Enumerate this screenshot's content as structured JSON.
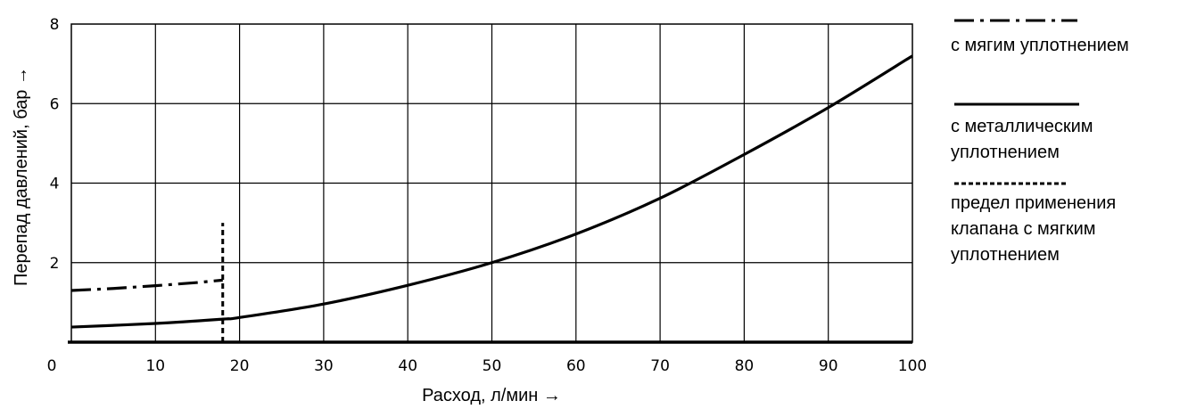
{
  "chart_data": {
    "type": "line",
    "xlabel": "Расход, л/мин →",
    "ylabel": "Перепад давлений, бар →",
    "xlim": [
      0,
      100
    ],
    "ylim": [
      0,
      8
    ],
    "x_ticks": [
      0,
      10,
      20,
      30,
      40,
      50,
      60,
      70,
      80,
      90,
      100
    ],
    "y_ticks": [
      2,
      4,
      6,
      8
    ],
    "x_tick_labels": [
      "0",
      "10",
      "20",
      "30",
      "40",
      "50",
      "60",
      "70",
      "80",
      "90",
      "100"
    ],
    "y_tick_labels": [
      "2",
      "4",
      "6",
      "8"
    ],
    "grid": true,
    "legend_position": "right",
    "series": [
      {
        "name": "с мягим уплотнением",
        "style": "dash-dot",
        "color": "#000000",
        "x": [
          0,
          5,
          10,
          15,
          18
        ],
        "y": [
          1.3,
          1.35,
          1.42,
          1.5,
          1.56
        ]
      },
      {
        "name": "с металлическим уплотнением",
        "style": "solid",
        "color": "#000000",
        "x": [
          0,
          10,
          18,
          20,
          30,
          40,
          50,
          60,
          70,
          80,
          90,
          100
        ],
        "y": [
          0.38,
          0.47,
          0.58,
          0.62,
          0.96,
          1.43,
          2.0,
          2.72,
          3.62,
          4.72,
          5.9,
          7.2
        ]
      },
      {
        "name": "предел применения клапана с мягким уплотнением",
        "style": "dashed",
        "color": "#000000",
        "x": [
          18,
          18
        ],
        "y": [
          0,
          3.0
        ]
      }
    ],
    "legend_lines": [
      [
        "с мягим уплотнением"
      ],
      [
        "с металлическим",
        "уплотнением"
      ],
      [
        "предел применения",
        "клапана с мягким",
        "уплотнением"
      ]
    ]
  }
}
